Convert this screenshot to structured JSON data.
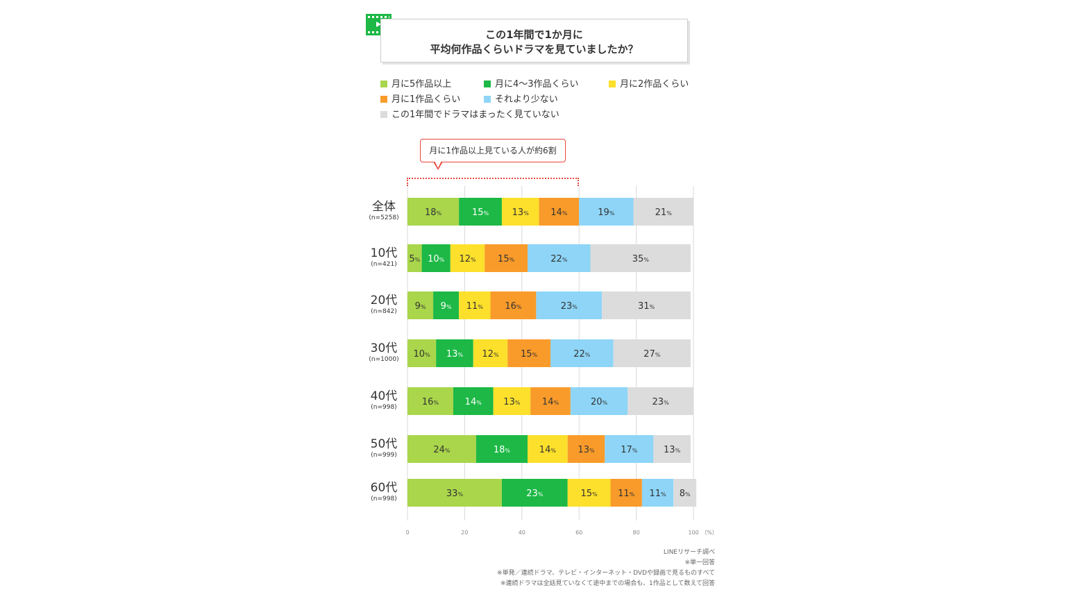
{
  "title": {
    "line1": "この1年間で1か月に",
    "line2": "平均何作品くらいドラマを見ていましたか？"
  },
  "icon": "video-play-icon",
  "legend": [
    {
      "label": "月に5作品以上",
      "color": "#a9d64b"
    },
    {
      "label": "月に4〜3作品くらい",
      "color": "#1db846"
    },
    {
      "label": "月に2作品くらい",
      "color": "#fde02b"
    },
    {
      "label": "月に1作品くらい",
      "color": "#f99b2a"
    },
    {
      "label": "それより少ない",
      "color": "#8ed5f7"
    },
    {
      "label": "この1年間でドラマはまったく見ていない",
      "color": "#dcdcdc"
    }
  ],
  "callout": {
    "text": "月に1作品以上見ている人が約6割",
    "accent": "#e8463c"
  },
  "chart_data": {
    "type": "bar",
    "orientation": "horizontal",
    "stacked": true,
    "categories": [
      "全体",
      "10代",
      "20代",
      "30代",
      "40代",
      "50代",
      "60代"
    ],
    "sample_sizes": [
      "(n=5258)",
      "(n=421)",
      "(n=842)",
      "(n=1000)",
      "(n=998)",
      "(n=999)",
      "(n=998)"
    ],
    "series": [
      {
        "name": "月に5作品以上",
        "color": "#a9d64b",
        "values": [
          18,
          5,
          9,
          10,
          16,
          24,
          33
        ]
      },
      {
        "name": "月に4〜3作品くらい",
        "color": "#1db846",
        "values": [
          15,
          10,
          9,
          13,
          14,
          18,
          23
        ]
      },
      {
        "name": "月に2作品くらい",
        "color": "#fde02b",
        "values": [
          13,
          12,
          11,
          12,
          13,
          14,
          15
        ]
      },
      {
        "name": "月に1作品くらい",
        "color": "#f99b2a",
        "values": [
          14,
          15,
          16,
          15,
          14,
          13,
          11
        ]
      },
      {
        "name": "それより少ない",
        "color": "#8ed5f7",
        "values": [
          19,
          22,
          23,
          22,
          20,
          17,
          11
        ]
      },
      {
        "name": "この1年間でドラマはまったく見ていない",
        "color": "#dcdcdc",
        "values": [
          21,
          35,
          31,
          27,
          23,
          13,
          8
        ]
      }
    ],
    "value_unit": "%",
    "xlim": [
      0,
      100
    ],
    "xticks": [
      "0",
      "20",
      "40",
      "60",
      "80",
      "100"
    ],
    "xunit": "（%）",
    "grid": true
  },
  "footnotes": [
    "LINEリサーチ調べ",
    "※単一回答",
    "※単発／連続ドラマ、テレビ・インターネット・DVDや録画で見るものすべて",
    "※連続ドラマは全話見ていなくて途中までの場合も、1作品として数えて回答"
  ]
}
